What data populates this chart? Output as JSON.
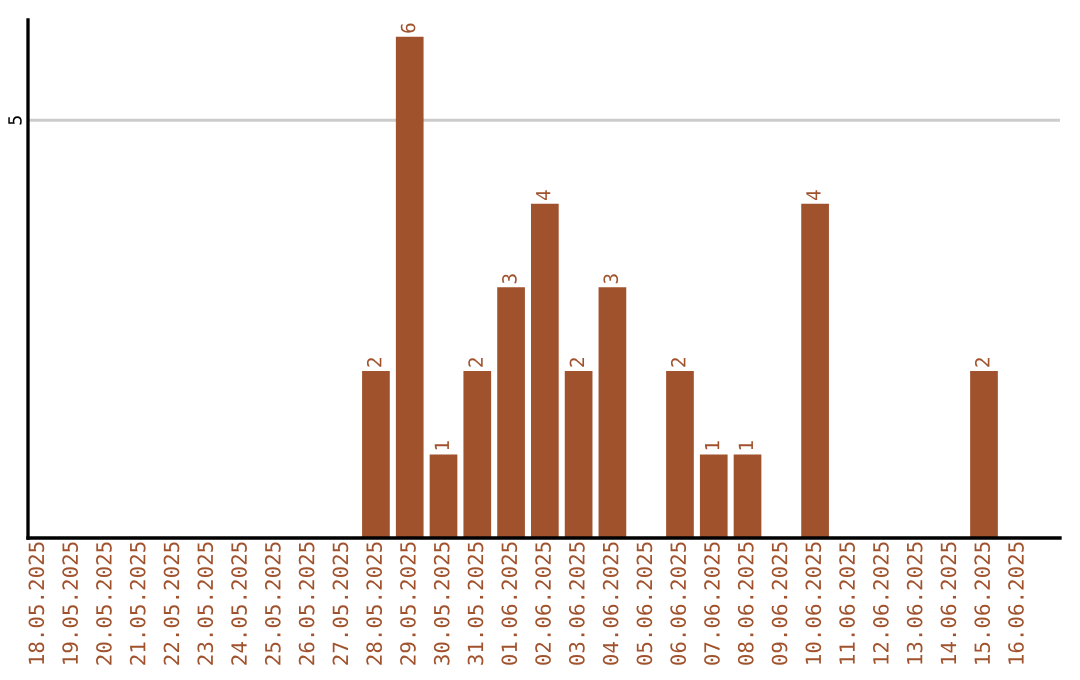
{
  "chart_data": {
    "type": "bar",
    "categories": [
      "18.05.2025",
      "19.05.2025",
      "20.05.2025",
      "21.05.2025",
      "22.05.2025",
      "23.05.2025",
      "24.05.2025",
      "25.05.2025",
      "26.05.2025",
      "27.05.2025",
      "28.05.2025",
      "29.05.2025",
      "30.05.2025",
      "31.05.2025",
      "01.06.2025",
      "02.06.2025",
      "03.06.2025",
      "04.06.2025",
      "05.06.2025",
      "06.06.2025",
      "07.06.2025",
      "08.06.2025",
      "09.06.2025",
      "10.06.2025",
      "11.06.2025",
      "12.06.2025",
      "13.06.2025",
      "14.06.2025",
      "15.06.2025",
      "16.06.2025"
    ],
    "values": [
      0,
      0,
      0,
      0,
      0,
      0,
      0,
      0,
      0,
      0,
      2,
      6,
      1,
      2,
      3,
      4,
      2,
      3,
      0,
      2,
      1,
      1,
      0,
      4,
      0,
      0,
      0,
      0,
      2,
      0
    ],
    "value_labels": [
      null,
      null,
      null,
      null,
      null,
      null,
      null,
      null,
      null,
      null,
      "2",
      "6",
      "1",
      "2",
      "3",
      "4",
      "2",
      "3",
      null,
      "2",
      "1",
      "1",
      null,
      "4",
      null,
      null,
      null,
      null,
      "2",
      null
    ],
    "color": "#a0522d",
    "ylim": [
      0,
      6.2
    ],
    "yticks": [
      5
    ],
    "grid": "y",
    "legend": false
  }
}
